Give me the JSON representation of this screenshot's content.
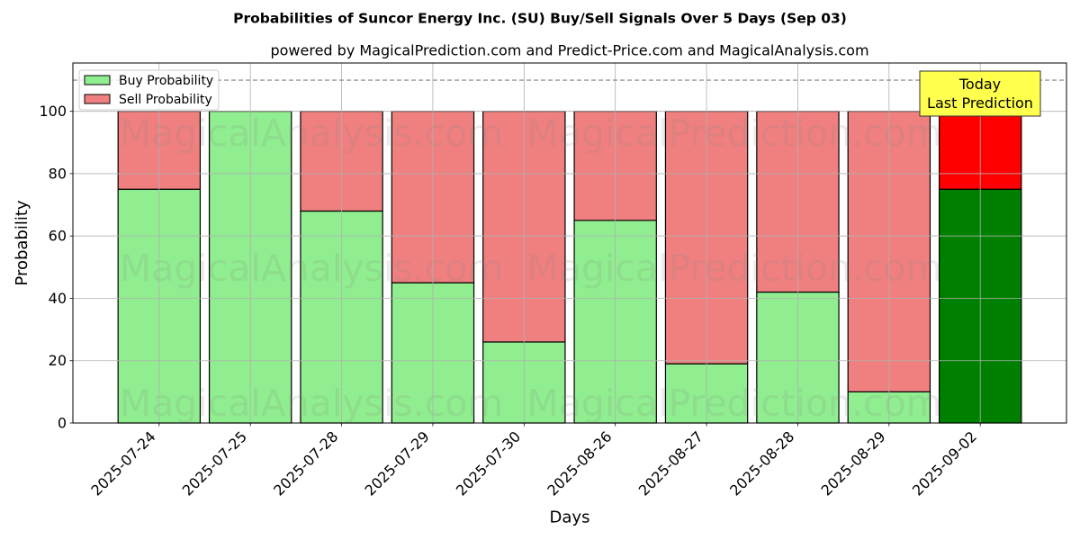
{
  "chart_data": {
    "type": "bar",
    "stacked": true,
    "title": "Probabilities of Suncor Energy Inc. (SU) Buy/Sell Signals Over 5 Days (Sep 03)",
    "subtitle": "powered by MagicalPrediction.com and Predict-Price.com and MagicalAnalysis.com",
    "xlabel": "Days",
    "ylabel": "Probability",
    "ylim": [
      0,
      115.5
    ],
    "yticks": [
      0,
      20,
      40,
      60,
      80,
      100
    ],
    "grid": true,
    "legend_position": "upper-left",
    "categories": [
      "2025-07-24",
      "2025-07-25",
      "2025-07-28",
      "2025-07-29",
      "2025-07-30",
      "2025-08-26",
      "2025-08-27",
      "2025-08-28",
      "2025-08-29",
      "2025-09-02"
    ],
    "series": [
      {
        "name": "Buy Probability",
        "key": "buy",
        "values": [
          75,
          100,
          68,
          45,
          26,
          65,
          19,
          42,
          10,
          75
        ],
        "color": "#90EE90",
        "last_color": "#008000"
      },
      {
        "name": "Sell Probability",
        "key": "sell",
        "values": [
          25,
          0,
          32,
          55,
          74,
          35,
          81,
          58,
          90,
          25
        ],
        "color": "#F08080",
        "last_color": "#FF0000"
      }
    ],
    "reference_line": {
      "y": 110,
      "style": "dashed",
      "color": "#808080"
    },
    "annotation": {
      "lines": [
        "Today",
        "Last Prediction"
      ],
      "category": "2025-09-02",
      "background": "#FFFF4D"
    },
    "watermarks": [
      "MagicalAnalysis.com",
      "MagicalPrediction.com"
    ]
  }
}
